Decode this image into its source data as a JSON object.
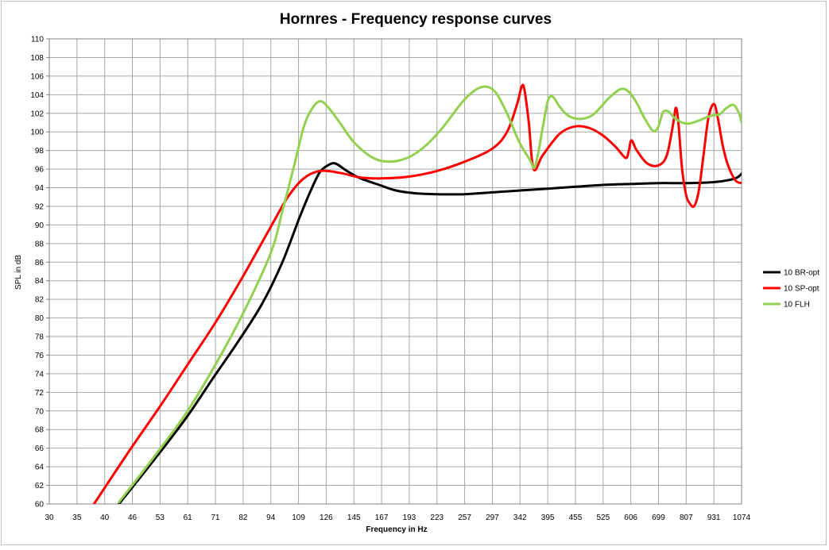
{
  "chart_data": {
    "type": "line",
    "title": "Hornres - Frequency response curves",
    "xlabel": "Frequency in Hz",
    "ylabel": "SPL in dB",
    "x_scale": "log",
    "xlim": [
      30,
      1074
    ],
    "ylim": [
      60,
      110
    ],
    "x_ticks": [
      30,
      35,
      40,
      46,
      53,
      61,
      71,
      82,
      94,
      109,
      126,
      145,
      167,
      193,
      223,
      257,
      297,
      342,
      395,
      455,
      525,
      606,
      699,
      807,
      931,
      1074
    ],
    "y_ticks": [
      60,
      62,
      64,
      66,
      68,
      70,
      72,
      74,
      76,
      78,
      80,
      82,
      84,
      86,
      88,
      90,
      92,
      94,
      96,
      98,
      100,
      102,
      104,
      106,
      108,
      110
    ],
    "grid": true,
    "legend_position": "right",
    "series": [
      {
        "name": "10 BR-opt",
        "color": "#000000",
        "x": [
          43,
          50,
          60,
          70,
          80,
          90,
          100,
          110,
          117,
          122,
          127,
          132,
          140,
          150,
          165,
          180,
          200,
          223,
          257,
          297,
          342,
          395,
          455,
          525,
          606,
          699,
          807,
          931,
          1000,
          1050,
          1074
        ],
        "y": [
          60,
          64,
          69,
          73.5,
          77.5,
          81.5,
          86,
          91,
          94,
          95.7,
          96.4,
          96.6,
          95.8,
          95,
          94.3,
          93.7,
          93.4,
          93.3,
          93.3,
          93.5,
          93.7,
          93.9,
          94.1,
          94.3,
          94.4,
          94.5,
          94.5,
          94.6,
          94.8,
          95.1,
          95.5
        ]
      },
      {
        "name": "10 SP-opt",
        "color": "#ff0000",
        "x": [
          38,
          45,
          53,
          61,
          71,
          82,
          94,
          103,
          112,
          122,
          135,
          150,
          167,
          193,
          223,
          257,
          297,
          320,
          337,
          345,
          350,
          358,
          367,
          385,
          420,
          455,
          490,
          525,
          560,
          590,
          600,
          608,
          625,
          660,
          699,
          730,
          755,
          765,
          775,
          790,
          807,
          820,
          840,
          860,
          880,
          905,
          931,
          950,
          975,
          1000,
          1040,
          1074
        ],
        "y": [
          60,
          65.5,
          70.5,
          75,
          79.5,
          84.5,
          89.8,
          93,
          95,
          95.8,
          95.6,
          95.1,
          95,
          95.2,
          95.8,
          96.8,
          98.2,
          100,
          103,
          104.9,
          104.5,
          101,
          96,
          97.5,
          99.8,
          100.6,
          100.4,
          99.6,
          98.4,
          97.2,
          98,
          99.1,
          98,
          96.6,
          96.4,
          97.5,
          101,
          102.6,
          101,
          96,
          93.2,
          92.4,
          92,
          93.5,
          97,
          101.5,
          103,
          101.5,
          98.5,
          96.5,
          94.8,
          94.5
        ]
      },
      {
        "name": "10 FLH",
        "color": "#92d050",
        "x": [
          43,
          50,
          60,
          70,
          82,
          94,
          100,
          106,
          112,
          117,
          122,
          127,
          135,
          145,
          160,
          175,
          193,
          210,
          230,
          257,
          280,
          300,
          320,
          340,
          360,
          370,
          385,
          395,
          405,
          420,
          440,
          470,
          500,
          540,
          575,
          600,
          625,
          650,
          680,
          699,
          715,
          735,
          760,
          790,
          820,
          860,
          900,
          931,
          960,
          990,
          1030,
          1060,
          1074
        ],
        "y": [
          60.2,
          64.3,
          69.5,
          74.5,
          80.5,
          87,
          91.5,
          96,
          100.5,
          102.5,
          103.3,
          102.7,
          101,
          98.9,
          97.2,
          96.8,
          97.3,
          98.5,
          100.5,
          103.5,
          104.8,
          104.4,
          102,
          99,
          97,
          96.3,
          100.5,
          103.3,
          103.8,
          102.7,
          101.7,
          101.4,
          101.9,
          103.6,
          104.6,
          104.3,
          103.1,
          101.5,
          100.1,
          100.6,
          102.1,
          102.2,
          101.5,
          101,
          100.9,
          101.2,
          101.6,
          101.8,
          101.9,
          102.5,
          102.9,
          102,
          101
        ]
      }
    ]
  }
}
